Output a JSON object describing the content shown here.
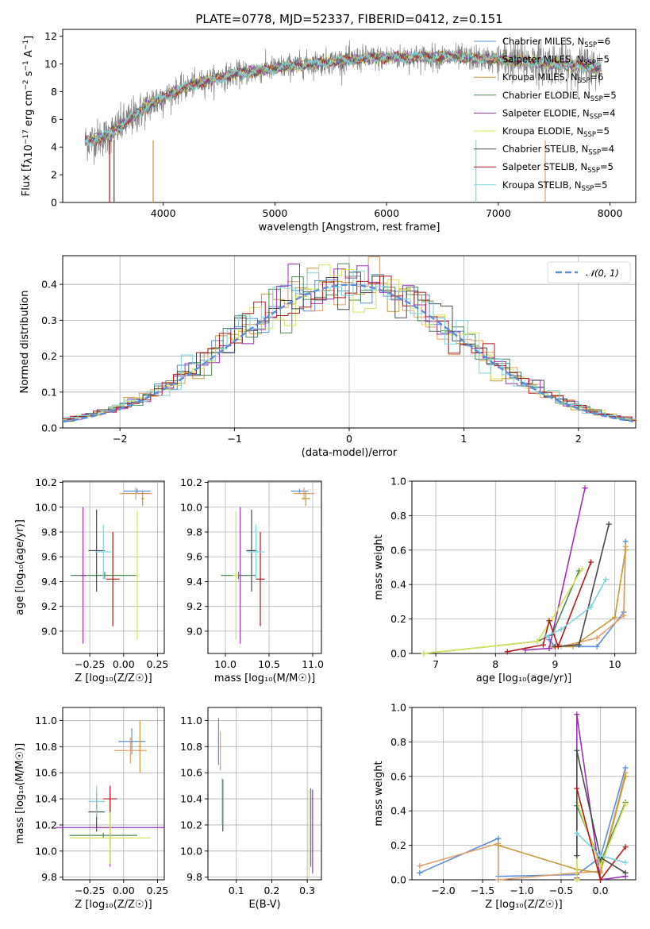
{
  "title": "PLATE=0778, MJD=52337, FIBERID=0412, z=0.151",
  "colors": {
    "Chabrier MILES": "#5b8fd8",
    "Salpeter MILES": "#e0a06a",
    "Kroupa MILES": "#c59a3a",
    "Chabrier ELODIE": "#4f8a55",
    "Salpeter ELODIE": "#9b30b8",
    "Kroupa ELODIE": "#d8e35a",
    "Chabrier STELIB": "#4a4a4a",
    "Salpeter STELIB": "#b01a1a",
    "Kroupa STELIB": "#7ed3de",
    "observed": "#808080",
    "normal": "#5b8fd8"
  },
  "legend": [
    {
      "label": "Chabrier MILES, N",
      "sub": "SSP",
      "suffix": "=6",
      "key": "Chabrier MILES"
    },
    {
      "label": "Salpeter MILES, N",
      "sub": "SSP",
      "suffix": "=5",
      "key": "Salpeter MILES"
    },
    {
      "label": "Kroupa MILES, N",
      "sub": "SSP",
      "suffix": "=6",
      "key": "Kroupa MILES"
    },
    {
      "label": "Chabrier ELODIE, N",
      "sub": "SSP",
      "suffix": "=5",
      "key": "Chabrier ELODIE"
    },
    {
      "label": "Salpeter ELODIE, N",
      "sub": "SSP",
      "suffix": "=4",
      "key": "Salpeter ELODIE"
    },
    {
      "label": "Kroupa ELODIE, N",
      "sub": "SSP",
      "suffix": "=5",
      "key": "Kroupa ELODIE"
    },
    {
      "label": "Chabrier STELIB, N",
      "sub": "SSP",
      "suffix": "=4",
      "key": "Chabrier STELIB"
    },
    {
      "label": "Salpeter STELIB, N",
      "sub": "SSP",
      "suffix": "=5",
      "key": "Salpeter STELIB"
    },
    {
      "label": "Kroupa STELIB, N",
      "sub": "SSP",
      "suffix": "=5",
      "key": "Kroupa STELIB"
    }
  ],
  "chart_data": [
    {
      "type": "line",
      "id": "spectrum",
      "xlabel": "wavelength [Angstrom, rest frame]",
      "ylabel_parts": [
        "Flux [f",
        "λ",
        "10",
        "−17",
        " erg cm",
        "−2",
        " s",
        "−1",
        " A",
        "−1",
        "]"
      ],
      "xlim": [
        3100,
        8230
      ],
      "ylim": [
        0,
        12.5
      ],
      "xticks": [
        4000,
        5000,
        6000,
        7000,
        8000
      ],
      "yticks": [
        0,
        2,
        4,
        6,
        8,
        10,
        12
      ],
      "continuum_knots": [
        [
          3300,
          4.4
        ],
        [
          3500,
          4.8
        ],
        [
          3700,
          6.0
        ],
        [
          3900,
          7.2
        ],
        [
          4100,
          8.0
        ],
        [
          4300,
          8.6
        ],
        [
          4600,
          9.2
        ],
        [
          5000,
          9.7
        ],
        [
          5400,
          10.1
        ],
        [
          5800,
          10.4
        ],
        [
          6200,
          10.5
        ],
        [
          6600,
          10.5
        ],
        [
          7000,
          10.3
        ],
        [
          7400,
          10.1
        ],
        [
          7800,
          9.8
        ],
        [
          7920,
          9.7
        ]
      ]
    },
    {
      "type": "area",
      "id": "residual-histogram",
      "xlabel": "(data-model)/error",
      "ylabel": "Normed distribution",
      "xlim": [
        -2.5,
        2.5
      ],
      "ylim": [
        0,
        0.48
      ],
      "xticks": [
        -2,
        -1,
        0,
        1,
        2
      ],
      "xtick_labels": [
        "−2",
        "−1",
        "0",
        "1",
        "2"
      ],
      "yticks": [
        0.0,
        0.1,
        0.2,
        0.3,
        0.4
      ],
      "normal_label": "𝒩(0, 1)",
      "normal": {
        "mu": 0,
        "sigma": 1
      }
    },
    {
      "type": "scatter",
      "id": "age-vs-Z",
      "xlabel": "Z [log₁₀(Z/Z☉)]",
      "ylabel": "age  [log₁₀(age/yr)]",
      "xlim": [
        -0.45,
        0.3
      ],
      "ylim": [
        8.82,
        10.21
      ],
      "xticks": [
        -0.25,
        0.0,
        0.25
      ],
      "xtick_labels": [
        "−0.25",
        "0.00",
        "0.25"
      ],
      "yticks": [
        9.0,
        9.2,
        9.4,
        9.6,
        9.8,
        10.0,
        10.2
      ],
      "points": [
        {
          "key": "Chabrier MILES",
          "x": 0.1,
          "xerr": 0.1,
          "y": 10.13,
          "yerr": 0.02
        },
        {
          "key": "Salpeter MILES",
          "x": 0.09,
          "xerr": 0.12,
          "y": 10.11,
          "yerr": 0.05
        },
        {
          "key": "Kroupa MILES",
          "x": 0.14,
          "xerr": 0.01,
          "y": 10.07,
          "yerr": 0.06
        },
        {
          "key": "Chabrier ELODIE",
          "x": -0.14,
          "xerr": 0.25,
          "y": 9.45,
          "yerr": 0.03
        },
        {
          "key": "Salpeter ELODIE",
          "x": -0.3,
          "xerr": 0.02,
          "y": 9.45,
          "yerr": 0.55
        },
        {
          "key": "Kroupa ELODIE",
          "x": 0.1,
          "xerr": 0.01,
          "y": 9.45,
          "yerr": 0.52
        },
        {
          "key": "Chabrier STELIB",
          "x": -0.2,
          "xerr": 0.06,
          "y": 9.65,
          "yerr": 0.33
        },
        {
          "key": "Salpeter STELIB",
          "x": -0.08,
          "xerr": 0.05,
          "y": 9.42,
          "yerr": 0.38
        },
        {
          "key": "Kroupa STELIB",
          "x": -0.15,
          "xerr": 0.06,
          "y": 9.64,
          "yerr": 0.22
        }
      ]
    },
    {
      "type": "scatter",
      "id": "age-vs-mass",
      "xlabel": "mass [log₁₀(M/M☉)]",
      "ylabel": "",
      "xlim": [
        9.8,
        11.1
      ],
      "ylim": [
        8.82,
        10.21
      ],
      "xticks": [
        10.0,
        10.5,
        11.0
      ],
      "xtick_labels": [
        "10.0",
        "10.5",
        "11.0"
      ],
      "yticks": [
        9.0,
        9.2,
        9.4,
        9.6,
        9.8,
        10.0,
        10.2
      ],
      "points": [
        {
          "key": "Chabrier MILES",
          "x": 10.85,
          "xerr": 0.1,
          "y": 10.13,
          "yerr": 0.02
        },
        {
          "key": "Salpeter MILES",
          "x": 10.9,
          "xerr": 0.12,
          "y": 10.11,
          "yerr": 0.05
        },
        {
          "key": "Kroupa MILES",
          "x": 10.92,
          "xerr": 0.05,
          "y": 10.07,
          "yerr": 0.06
        },
        {
          "key": "Chabrier ELODIE",
          "x": 10.15,
          "xerr": 0.2,
          "y": 9.45,
          "yerr": 0.03
        },
        {
          "key": "Salpeter ELODIE",
          "x": 10.17,
          "xerr": 0.02,
          "y": 9.45,
          "yerr": 0.55
        },
        {
          "key": "Kroupa ELODIE",
          "x": 10.12,
          "xerr": 0.03,
          "y": 9.45,
          "yerr": 0.52
        },
        {
          "key": "Chabrier STELIB",
          "x": 10.3,
          "xerr": 0.06,
          "y": 9.65,
          "yerr": 0.33
        },
        {
          "key": "Salpeter STELIB",
          "x": 10.4,
          "xerr": 0.05,
          "y": 9.42,
          "yerr": 0.38
        },
        {
          "key": "Kroupa STELIB",
          "x": 10.35,
          "xerr": 0.1,
          "y": 9.64,
          "yerr": 0.22
        }
      ]
    },
    {
      "type": "line",
      "id": "mass-weight-vs-age",
      "xlabel": "age  [log₁₀(age/yr)]",
      "ylabel": "mass weight",
      "xlim": [
        6.6,
        10.35
      ],
      "ylim": [
        0,
        1.0
      ],
      "xticks": [
        7,
        8,
        9,
        10
      ],
      "xtick_labels": [
        "7",
        "8",
        "9",
        "10"
      ],
      "yticks": [
        0.0,
        0.2,
        0.4,
        0.6,
        0.8,
        1.0
      ],
      "series": [
        {
          "key": "Chabrier MILES",
          "points": [
            [
              8.9,
              0.08
            ],
            [
              9.0,
              0.04
            ],
            [
              9.7,
              0.04
            ],
            [
              10.15,
              0.24
            ],
            [
              10.18,
              0.65
            ]
          ]
        },
        {
          "key": "Salpeter MILES",
          "points": [
            [
              8.9,
              0.03
            ],
            [
              9.1,
              0.04
            ],
            [
              9.7,
              0.09
            ],
            [
              10.15,
              0.22
            ],
            [
              10.18,
              0.62
            ]
          ]
        },
        {
          "key": "Kroupa MILES",
          "points": [
            [
              8.95,
              0.04
            ],
            [
              9.3,
              0.04
            ],
            [
              10.0,
              0.21
            ],
            [
              10.18,
              0.6
            ]
          ]
        },
        {
          "key": "Chabrier ELODIE",
          "points": [
            [
              6.8,
              0.0
            ],
            [
              8.7,
              0.07
            ],
            [
              8.95,
              0.11
            ],
            [
              9.4,
              0.48
            ]
          ]
        },
        {
          "key": "Salpeter ELODIE",
          "points": [
            [
              8.5,
              0.02
            ],
            [
              8.9,
              0.03
            ],
            [
              9.5,
              0.96
            ]
          ]
        },
        {
          "key": "Kroupa ELODIE",
          "points": [
            [
              6.8,
              0.0
            ],
            [
              8.7,
              0.07
            ],
            [
              8.95,
              0.2
            ],
            [
              9.45,
              0.49
            ]
          ]
        },
        {
          "key": "Chabrier STELIB",
          "points": [
            [
              9.0,
              0.04
            ],
            [
              9.4,
              0.05
            ],
            [
              9.9,
              0.75
            ]
          ]
        },
        {
          "key": "Salpeter STELIB",
          "points": [
            [
              8.2,
              0.01
            ],
            [
              8.8,
              0.05
            ],
            [
              8.9,
              0.19
            ],
            [
              9.05,
              0.04
            ],
            [
              9.6,
              0.53
            ]
          ]
        },
        {
          "key": "Kroupa STELIB",
          "points": [
            [
              8.85,
              0.1
            ],
            [
              9.1,
              0.14
            ],
            [
              9.6,
              0.27
            ],
            [
              9.85,
              0.43
            ]
          ]
        }
      ]
    },
    {
      "type": "scatter",
      "id": "mass-vs-Z",
      "xlabel": "Z [log₁₀(Z/Z☉)]",
      "ylabel": "mass [log₁₀(M/M☉)]",
      "xlim": [
        -0.45,
        0.3
      ],
      "ylim": [
        9.78,
        11.1
      ],
      "xticks": [
        -0.25,
        0.0,
        0.25
      ],
      "xtick_labels": [
        "−0.25",
        "0.00",
        "0.25"
      ],
      "yticks": [
        9.8,
        10.0,
        10.2,
        10.4,
        10.6,
        10.8,
        11.0
      ],
      "points": [
        {
          "key": "Chabrier MILES",
          "x": 0.06,
          "xerr": 0.1,
          "y": 10.84,
          "yerr": 0.1
        },
        {
          "key": "Salpeter MILES",
          "x": 0.05,
          "xerr": 0.12,
          "y": 10.77,
          "yerr": 0.1
        },
        {
          "key": "Kroupa MILES",
          "x": 0.12,
          "xerr": 0.01,
          "y": 10.8,
          "yerr": 0.2
        },
        {
          "key": "Chabrier ELODIE",
          "x": -0.15,
          "xerr": 0.25,
          "y": 10.12,
          "yerr": 0.02
        },
        {
          "key": "Salpeter ELODIE",
          "x": -0.1,
          "xerr": 0.4,
          "y": 10.18,
          "yerr": 0.3
        },
        {
          "key": "Kroupa ELODIE",
          "x": -0.1,
          "xerr": 0.3,
          "y": 10.1,
          "yerr": 0.2
        },
        {
          "key": "Chabrier STELIB",
          "x": -0.2,
          "xerr": 0.06,
          "y": 10.3,
          "yerr": 0.15
        },
        {
          "key": "Salpeter STELIB",
          "x": -0.1,
          "xerr": 0.05,
          "y": 10.4,
          "yerr": 0.1
        },
        {
          "key": "Kroupa STELIB",
          "x": -0.2,
          "xerr": 0.06,
          "y": 10.38,
          "yerr": 0.12
        }
      ]
    },
    {
      "type": "scatter",
      "id": "mass-vs-EBV",
      "xlabel": "E(B-V)",
      "ylabel": "",
      "xlim": [
        0.02,
        0.34
      ],
      "ylim": [
        9.78,
        11.1
      ],
      "xticks": [
        0.1,
        0.2,
        0.3
      ],
      "xtick_labels": [
        "0.1",
        "0.2",
        "0.3"
      ],
      "yticks": [
        9.8,
        10.0,
        10.2,
        10.4,
        10.6,
        10.8,
        11.0
      ],
      "points": [
        {
          "key": "Chabrier MILES",
          "x": 0.05,
          "y": 10.84,
          "yerr": 0.18
        },
        {
          "key": "Salpeter MILES",
          "x": 0.055,
          "y": 10.77,
          "yerr": 0.15
        },
        {
          "key": "Chabrier STELIB",
          "x": 0.062,
          "y": 10.35,
          "yerr": 0.2
        },
        {
          "key": "Kroupa STELIB",
          "x": 0.06,
          "y": 10.38,
          "yerr": 0.18
        },
        {
          "key": "Kroupa ELODIE",
          "x": 0.305,
          "y": 10.12,
          "yerr": 0.35
        },
        {
          "key": "Salpeter ELODIE",
          "x": 0.315,
          "y": 10.15,
          "yerr": 0.32
        },
        {
          "key": "Chabrier ELODIE",
          "x": 0.31,
          "y": 10.18,
          "yerr": 0.3
        }
      ]
    },
    {
      "type": "line",
      "id": "mass-weight-vs-Z",
      "xlabel": "Z [log₁₀(Z/Z☉)]",
      "ylabel": "mass weight",
      "xlim": [
        -2.4,
        0.45
      ],
      "ylim": [
        0,
        1.0
      ],
      "xticks": [
        -2.0,
        -1.5,
        -1.0,
        -0.5,
        0.0
      ],
      "xtick_labels": [
        "−2.0",
        "−1.5",
        "−1.0",
        "−0.5",
        "0.0"
      ],
      "yticks": [
        0.0,
        0.2,
        0.4,
        0.6,
        0.8,
        1.0
      ],
      "series": [
        {
          "key": "Chabrier MILES",
          "points": [
            [
              -2.3,
              0.04
            ],
            [
              -1.3,
              0.24
            ],
            [
              -1.3,
              0.02
            ],
            [
              -0.3,
              0.03
            ],
            [
              0.0,
              0.13
            ],
            [
              0.32,
              0.65
            ]
          ]
        },
        {
          "key": "Salpeter MILES",
          "points": [
            [
              -2.3,
              0.08
            ],
            [
              -1.3,
              0.21
            ],
            [
              -1.3,
              0.0
            ],
            [
              -0.3,
              0.04
            ],
            [
              0.0,
              0.05
            ],
            [
              0.32,
              0.62
            ]
          ]
        },
        {
          "key": "Kroupa MILES",
          "points": [
            [
              -1.3,
              0.2
            ],
            [
              -0.3,
              0.06
            ],
            [
              0.0,
              0.04
            ],
            [
              0.32,
              0.6
            ]
          ]
        },
        {
          "key": "Chabrier ELODIE",
          "points": [
            [
              -0.3,
              0.0
            ],
            [
              -0.3,
              0.43
            ],
            [
              0.0,
              0.1
            ],
            [
              0.32,
              0.45
            ]
          ]
        },
        {
          "key": "Salpeter ELODIE",
          "points": [
            [
              -0.3,
              0.01
            ],
            [
              -0.3,
              0.96
            ],
            [
              0.0,
              0.0
            ],
            [
              0.32,
              0.02
            ]
          ]
        },
        {
          "key": "Kroupa ELODIE",
          "points": [
            [
              -0.3,
              0.0
            ],
            [
              -0.3,
              0.45
            ],
            [
              0.0,
              0.08
            ],
            [
              0.32,
              0.44
            ]
          ]
        },
        {
          "key": "Chabrier STELIB",
          "points": [
            [
              -0.3,
              0.14
            ],
            [
              -0.3,
              0.75
            ],
            [
              0.0,
              0.13
            ],
            [
              0.32,
              0.04
            ]
          ]
        },
        {
          "key": "Salpeter STELIB",
          "points": [
            [
              -0.3,
              0.53
            ],
            [
              0.0,
              0.0
            ],
            [
              0.32,
              0.19
            ]
          ]
        },
        {
          "key": "Kroupa STELIB",
          "points": [
            [
              -0.3,
              0.27
            ],
            [
              0.0,
              0.14
            ],
            [
              0.32,
              0.1
            ]
          ]
        }
      ]
    }
  ]
}
